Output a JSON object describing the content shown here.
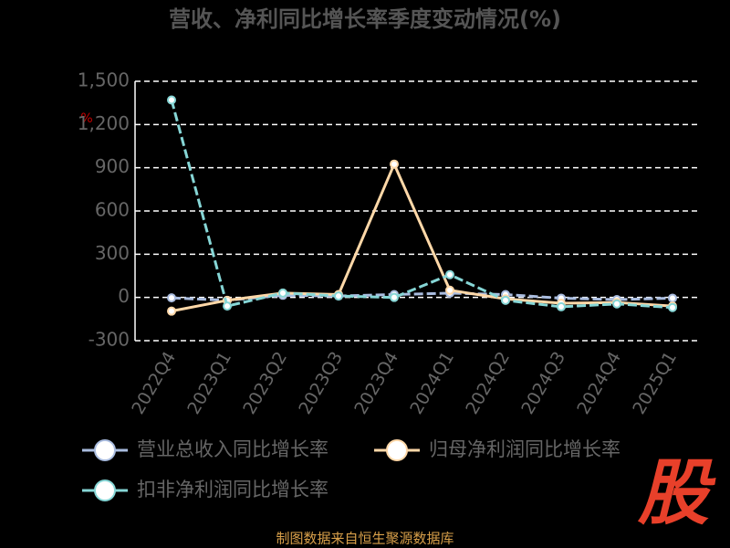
{
  "chart_data": {
    "type": "line",
    "title": "营收、净利同比增长率季度变动情况(%)",
    "y_unit": "%",
    "categories": [
      "2022Q4",
      "2023Q1",
      "2023Q2",
      "2023Q3",
      "2023Q4",
      "2024Q1",
      "2024Q2",
      "2024Q3",
      "2024Q4",
      "2025Q1"
    ],
    "series": [
      {
        "name": "营业总收入同比增长率",
        "color": "#a9bcdf",
        "values": [
          -3,
          -20,
          15,
          10,
          20,
          30,
          20,
          -5,
          -15,
          -5
        ]
      },
      {
        "name": "归母净利润同比增长率",
        "color": "#ffd8a8",
        "values": [
          -95,
          -20,
          30,
          20,
          925,
          50,
          -10,
          -40,
          -35,
          -60
        ]
      },
      {
        "name": "扣非净利润同比增长率",
        "color": "#86d6d6",
        "values": [
          1370,
          -60,
          30,
          10,
          0,
          158,
          -20,
          -65,
          -45,
          -70
        ]
      }
    ],
    "ylim": [
      -300,
      1500
    ],
    "yticks": [
      -300,
      0,
      300,
      600,
      900,
      {
        "value": 1200,
        "label": "1,200"
      },
      {
        "value": 1500,
        "label": "1,500"
      }
    ],
    "grid": true
  },
  "watermark": "股",
  "footer": "制图数据来自恒生聚源数据库"
}
